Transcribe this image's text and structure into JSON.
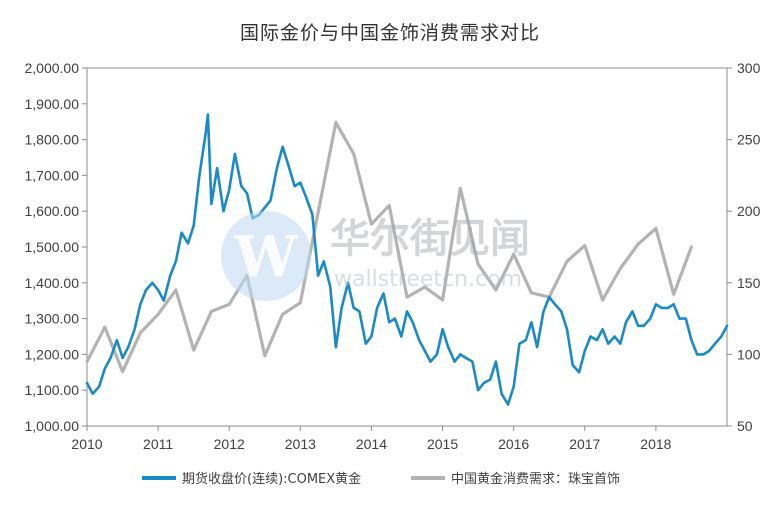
{
  "chart_data": {
    "type": "line",
    "title": "国际金价与中国金饰消费需求对比",
    "x_ticks": [
      "2010",
      "2011",
      "2012",
      "2013",
      "2014",
      "2015",
      "2016",
      "2017",
      "2018"
    ],
    "y_left_ticks": [
      "1,000.00",
      "1,100.00",
      "1,200.00",
      "1,300.00",
      "1,400.00",
      "1,500.00",
      "1,600.00",
      "1,700.00",
      "1,800.00",
      "1,900.00",
      "2,000.00"
    ],
    "y_right_ticks": [
      "50",
      "100",
      "150",
      "200",
      "250",
      "300"
    ],
    "ylim_left": [
      1000,
      2000
    ],
    "ylim_right": [
      50,
      300
    ],
    "xlim": [
      2010.0,
      2019.0
    ],
    "legend_position": "bottom",
    "grid": false,
    "series": [
      {
        "name": "期货收盘价(连续):COMEX黄金",
        "axis": "left",
        "color": "#1a8ac6",
        "points": [
          [
            2010.0,
            1120
          ],
          [
            2010.08,
            1090
          ],
          [
            2010.17,
            1110
          ],
          [
            2010.25,
            1160
          ],
          [
            2010.33,
            1190
          ],
          [
            2010.42,
            1240
          ],
          [
            2010.5,
            1190
          ],
          [
            2010.58,
            1220
          ],
          [
            2010.67,
            1270
          ],
          [
            2010.75,
            1340
          ],
          [
            2010.83,
            1380
          ],
          [
            2010.92,
            1400
          ],
          [
            2011.0,
            1380
          ],
          [
            2011.08,
            1350
          ],
          [
            2011.17,
            1420
          ],
          [
            2011.25,
            1460
          ],
          [
            2011.33,
            1540
          ],
          [
            2011.42,
            1510
          ],
          [
            2011.5,
            1560
          ],
          [
            2011.58,
            1700
          ],
          [
            2011.67,
            1820
          ],
          [
            2011.7,
            1870
          ],
          [
            2011.75,
            1620
          ],
          [
            2011.83,
            1720
          ],
          [
            2011.92,
            1600
          ],
          [
            2012.0,
            1660
          ],
          [
            2012.08,
            1760
          ],
          [
            2012.17,
            1670
          ],
          [
            2012.25,
            1650
          ],
          [
            2012.33,
            1580
          ],
          [
            2012.42,
            1590
          ],
          [
            2012.5,
            1610
          ],
          [
            2012.58,
            1630
          ],
          [
            2012.67,
            1720
          ],
          [
            2012.75,
            1780
          ],
          [
            2012.83,
            1730
          ],
          [
            2012.92,
            1670
          ],
          [
            2013.0,
            1680
          ],
          [
            2013.08,
            1640
          ],
          [
            2013.17,
            1590
          ],
          [
            2013.25,
            1420
          ],
          [
            2013.33,
            1460
          ],
          [
            2013.42,
            1390
          ],
          [
            2013.5,
            1220
          ],
          [
            2013.58,
            1330
          ],
          [
            2013.67,
            1400
          ],
          [
            2013.75,
            1330
          ],
          [
            2013.83,
            1320
          ],
          [
            2013.92,
            1230
          ],
          [
            2014.0,
            1250
          ],
          [
            2014.08,
            1330
          ],
          [
            2014.17,
            1370
          ],
          [
            2014.25,
            1290
          ],
          [
            2014.33,
            1300
          ],
          [
            2014.42,
            1250
          ],
          [
            2014.5,
            1320
          ],
          [
            2014.58,
            1290
          ],
          [
            2014.67,
            1240
          ],
          [
            2014.75,
            1210
          ],
          [
            2014.83,
            1180
          ],
          [
            2014.92,
            1200
          ],
          [
            2015.0,
            1270
          ],
          [
            2015.08,
            1220
          ],
          [
            2015.17,
            1180
          ],
          [
            2015.25,
            1200
          ],
          [
            2015.33,
            1190
          ],
          [
            2015.42,
            1180
          ],
          [
            2015.5,
            1100
          ],
          [
            2015.58,
            1120
          ],
          [
            2015.67,
            1130
          ],
          [
            2015.75,
            1180
          ],
          [
            2015.83,
            1090
          ],
          [
            2015.92,
            1060
          ],
          [
            2016.0,
            1110
          ],
          [
            2016.08,
            1230
          ],
          [
            2016.17,
            1240
          ],
          [
            2016.25,
            1290
          ],
          [
            2016.33,
            1220
          ],
          [
            2016.42,
            1320
          ],
          [
            2016.5,
            1360
          ],
          [
            2016.58,
            1340
          ],
          [
            2016.67,
            1320
          ],
          [
            2016.75,
            1270
          ],
          [
            2016.83,
            1170
          ],
          [
            2016.92,
            1150
          ],
          [
            2017.0,
            1210
          ],
          [
            2017.08,
            1250
          ],
          [
            2017.17,
            1240
          ],
          [
            2017.25,
            1270
          ],
          [
            2017.33,
            1230
          ],
          [
            2017.42,
            1250
          ],
          [
            2017.5,
            1230
          ],
          [
            2017.58,
            1290
          ],
          [
            2017.67,
            1320
          ],
          [
            2017.75,
            1280
          ],
          [
            2017.83,
            1280
          ],
          [
            2017.92,
            1300
          ],
          [
            2018.0,
            1340
          ],
          [
            2018.08,
            1330
          ],
          [
            2018.17,
            1330
          ],
          [
            2018.25,
            1340
          ],
          [
            2018.33,
            1300
          ],
          [
            2018.42,
            1300
          ],
          [
            2018.5,
            1240
          ],
          [
            2018.58,
            1200
          ],
          [
            2018.67,
            1200
          ],
          [
            2018.75,
            1210
          ],
          [
            2018.83,
            1230
          ],
          [
            2018.92,
            1250
          ],
          [
            2019.0,
            1280
          ]
        ]
      },
      {
        "name": "中国黄金消费需求：珠宝首饰",
        "axis": "right",
        "color": "#b3b3b3",
        "points": [
          [
            2010.0,
            95
          ],
          [
            2010.25,
            119
          ],
          [
            2010.5,
            88
          ],
          [
            2010.75,
            115
          ],
          [
            2011.0,
            128
          ],
          [
            2011.25,
            145
          ],
          [
            2011.5,
            103
          ],
          [
            2011.75,
            130
          ],
          [
            2012.0,
            135
          ],
          [
            2012.25,
            155
          ],
          [
            2012.5,
            99
          ],
          [
            2012.75,
            128
          ],
          [
            2013.0,
            136
          ],
          [
            2013.5,
            262
          ],
          [
            2013.75,
            240
          ],
          [
            2014.0,
            191
          ],
          [
            2014.25,
            204
          ],
          [
            2014.5,
            140
          ],
          [
            2014.75,
            147
          ],
          [
            2015.0,
            138
          ],
          [
            2015.25,
            216
          ],
          [
            2015.5,
            163
          ],
          [
            2015.75,
            145
          ],
          [
            2016.0,
            170
          ],
          [
            2016.25,
            143
          ],
          [
            2016.5,
            140
          ],
          [
            2016.75,
            165
          ],
          [
            2017.0,
            176
          ],
          [
            2017.25,
            138
          ],
          [
            2017.5,
            160
          ],
          [
            2017.75,
            177
          ],
          [
            2018.0,
            188
          ],
          [
            2018.25,
            142
          ],
          [
            2018.5,
            175
          ]
        ]
      }
    ]
  },
  "watermark": {
    "brand_cn": "华尔街见闻",
    "brand_url": "wallstreetcn.com",
    "logo_letter": "W"
  }
}
